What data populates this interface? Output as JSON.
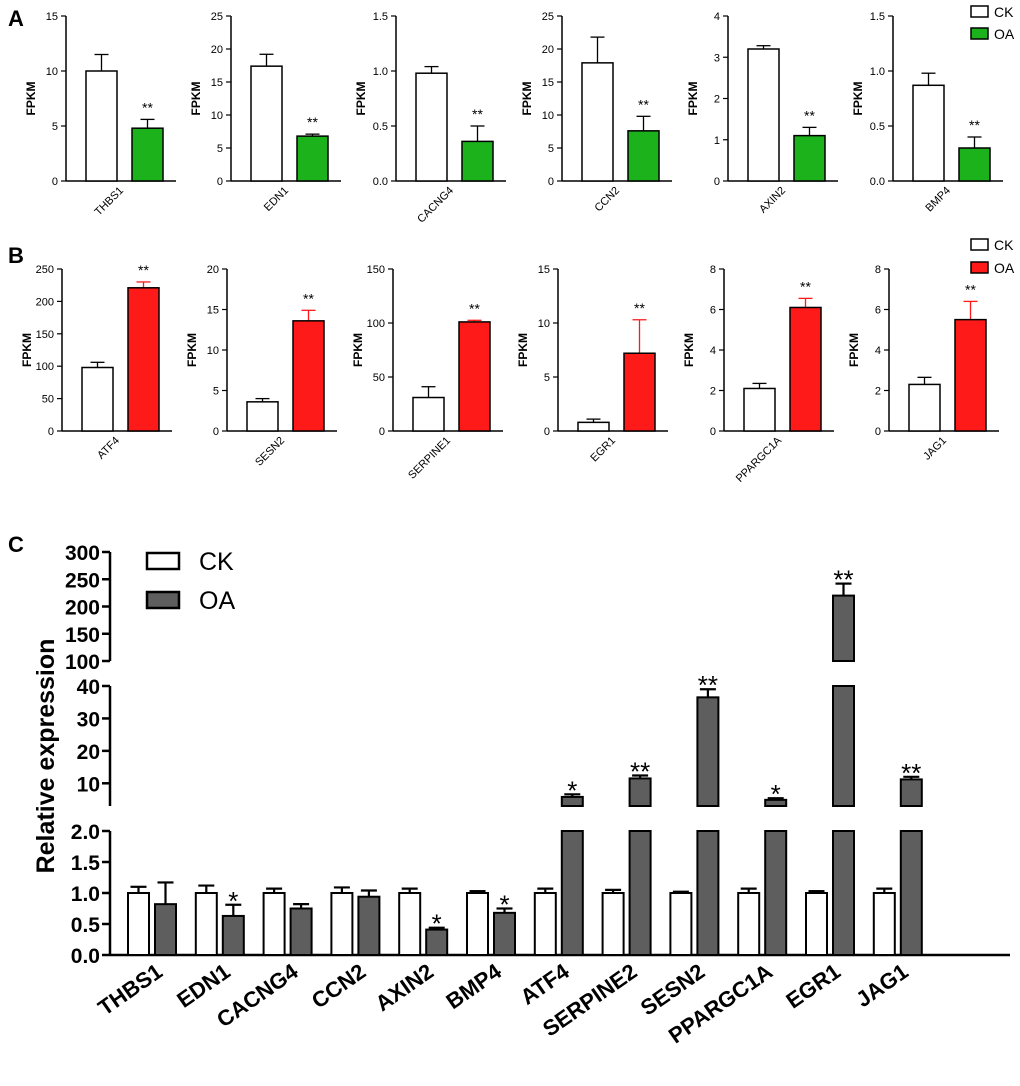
{
  "figure": {
    "panel_labels": [
      "A",
      "B",
      "C"
    ]
  },
  "chart_data": [
    {
      "panel": "A",
      "type": "bar",
      "legend": {
        "position": "top-right",
        "entries": [
          {
            "name": "CK",
            "color": "#ffffff"
          },
          {
            "name": "OA",
            "color": "#1cb21c"
          }
        ]
      },
      "subplots": [
        {
          "gene": "THBS1",
          "ylabel": "FPKM",
          "ylim": [
            0,
            15
          ],
          "ticks": [
            0,
            5,
            10,
            15
          ],
          "values": [
            10.0,
            4.8
          ],
          "errors": [
            1.5,
            0.8
          ],
          "significance": "**"
        },
        {
          "gene": "EDN1",
          "ylabel": "FPKM",
          "ylim": [
            0,
            25
          ],
          "ticks": [
            0,
            5,
            10,
            15,
            20,
            25
          ],
          "values": [
            17.4,
            6.8
          ],
          "errors": [
            1.8,
            0.3
          ],
          "significance": "**"
        },
        {
          "gene": "CACNG4",
          "ylabel": "FPKM",
          "ylim": [
            0,
            1.5
          ],
          "ticks": [
            0.0,
            0.5,
            1.0,
            1.5
          ],
          "values": [
            0.98,
            0.36
          ],
          "errors": [
            0.06,
            0.14
          ],
          "significance": "**"
        },
        {
          "gene": "CCN2",
          "ylabel": "FPKM",
          "ylim": [
            0,
            25
          ],
          "ticks": [
            0,
            5,
            10,
            15,
            20,
            25
          ],
          "values": [
            17.9,
            7.6
          ],
          "errors": [
            3.9,
            2.2
          ],
          "significance": "**"
        },
        {
          "gene": "AXIN2",
          "ylabel": "FPKM",
          "ylim": [
            0,
            4
          ],
          "ticks": [
            0,
            1,
            2,
            3,
            4
          ],
          "values": [
            3.2,
            1.1
          ],
          "errors": [
            0.08,
            0.2
          ],
          "significance": "**"
        },
        {
          "gene": "BMP4",
          "ylabel": "FPKM",
          "ylim": [
            0,
            1.5
          ],
          "ticks": [
            0.0,
            0.5,
            1.0,
            1.5
          ],
          "values": [
            0.87,
            0.3
          ],
          "errors": [
            0.11,
            0.1
          ],
          "significance": "**"
        }
      ]
    },
    {
      "panel": "B",
      "type": "bar",
      "legend": {
        "position": "top-right",
        "entries": [
          {
            "name": "CK",
            "color": "#ffffff"
          },
          {
            "name": "OA",
            "color": "#ff1a1a"
          }
        ]
      },
      "subplots": [
        {
          "gene": "ATF4",
          "ylabel": "FPKM",
          "ylim": [
            0,
            250
          ],
          "ticks": [
            0,
            50,
            100,
            150,
            200,
            250
          ],
          "values": [
            98,
            221
          ],
          "errors": [
            8,
            9
          ],
          "significance": "**"
        },
        {
          "gene": "SESN2",
          "ylabel": "FPKM",
          "ylim": [
            0,
            20
          ],
          "ticks": [
            0,
            5,
            10,
            15,
            20
          ],
          "values": [
            3.6,
            13.6
          ],
          "errors": [
            0.4,
            1.3
          ],
          "significance": "**"
        },
        {
          "gene": "SERPINE1",
          "ylabel": "FPKM",
          "ylim": [
            0,
            150
          ],
          "ticks": [
            0,
            50,
            100,
            150
          ],
          "values": [
            31,
            101
          ],
          "errors": [
            10,
            1.5
          ],
          "significance": "**"
        },
        {
          "gene": "EGR1",
          "ylabel": "FPKM",
          "ylim": [
            0,
            15
          ],
          "ticks": [
            0,
            5,
            10,
            15
          ],
          "values": [
            0.8,
            7.2
          ],
          "errors": [
            0.3,
            3.1
          ],
          "significance": "**"
        },
        {
          "gene": "PPARGC1A",
          "ylabel": "FPKM",
          "ylim": [
            0,
            8
          ],
          "ticks": [
            0,
            2,
            4,
            6,
            8
          ],
          "values": [
            2.1,
            6.1
          ],
          "errors": [
            0.25,
            0.45
          ],
          "significance": "**"
        },
        {
          "gene": "JAG1",
          "ylabel": "FPKM",
          "ylim": [
            0,
            8
          ],
          "ticks": [
            0,
            2,
            4,
            6,
            8
          ],
          "values": [
            2.3,
            5.5
          ],
          "errors": [
            0.35,
            0.9
          ],
          "significance": "**"
        }
      ]
    },
    {
      "panel": "C",
      "type": "bar",
      "ylabel": "Relative expression",
      "axis_segments": [
        {
          "range": [
            0,
            2
          ],
          "ticks": [
            "0.0",
            "0.5",
            "1.0",
            "1.5",
            "2.0"
          ]
        },
        {
          "range": [
            3,
            40
          ],
          "ticks": [
            "10",
            "20",
            "30",
            "40"
          ]
        },
        {
          "range": [
            100,
            300
          ],
          "ticks": [
            "100",
            "150",
            "200",
            "250",
            "300"
          ]
        }
      ],
      "legend": {
        "position": "top-left",
        "entries": [
          {
            "name": "CK",
            "color": "#ffffff"
          },
          {
            "name": "OA",
            "color": "#5e5e5e"
          }
        ]
      },
      "categories": [
        "THBS1",
        "EDN1",
        "CACNG4",
        "CCN2",
        "AXIN2",
        "BMP4",
        "ATF4",
        "SERPINE2",
        "SESN2",
        "PPARGC1A",
        "EGR1",
        "JAG1"
      ],
      "series": [
        {
          "name": "CK",
          "values": [
            1.0,
            1.0,
            1.0,
            1.0,
            1.0,
            1.0,
            1.0,
            1.0,
            1.0,
            1.0,
            1.0,
            1.0
          ],
          "errors": [
            0.1,
            0.12,
            0.07,
            0.09,
            0.07,
            0.03,
            0.07,
            0.05,
            0.02,
            0.07,
            0.03,
            0.07
          ]
        },
        {
          "name": "OA",
          "values": [
            0.82,
            0.63,
            0.75,
            0.94,
            0.41,
            0.68,
            5.8,
            11.5,
            36.5,
            4.9,
            220,
            11.2
          ],
          "errors": [
            0.35,
            0.18,
            0.07,
            0.1,
            0.03,
            0.07,
            0.8,
            0.9,
            2.5,
            0.5,
            22,
            0.8
          ]
        }
      ],
      "significance": [
        "",
        "*",
        "",
        "",
        "*",
        "*",
        "*",
        "**",
        "**",
        "*",
        "**",
        "**"
      ]
    }
  ]
}
